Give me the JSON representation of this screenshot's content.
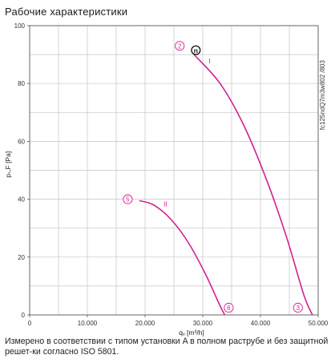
{
  "page": {
    "title": "Рабочие характеристики",
    "caption": "Измерено в соответствии с типом установки A в полном раструбе и без защитной решет-ки согласно ISO 5801."
  },
  "chart_data": {
    "type": "line",
    "xlabel": "qᵥ [m³/h]",
    "ylabel": "pₛ,F [Pa]",
    "xlim": [
      0,
      50000
    ],
    "ylim": [
      0,
      100
    ],
    "x_ticks": [
      0,
      10000,
      20000,
      30000,
      40000,
      50000
    ],
    "x_tick_labels": [
      "0",
      "10.000",
      "20.000",
      "30.000",
      "40.000",
      "50.000"
    ],
    "y_ticks": [
      0,
      20,
      40,
      60,
      80,
      100
    ],
    "y_tick_labels": [
      "0",
      "20",
      "40",
      "60",
      "80",
      "100"
    ],
    "grid": true,
    "side_note": "fc125ndQ7m3w802 /803",
    "series": [
      {
        "name": "I",
        "color": "#d4208f",
        "x": [
          28500,
          33000,
          37000,
          41000,
          44500,
          47500,
          49000
        ],
        "y": [
          90,
          80,
          66,
          47,
          27,
          7,
          0
        ],
        "label_at": [
          31000,
          87
        ],
        "start_marker": {
          "label": "2",
          "x": 26000,
          "y": 93
        },
        "end_marker": {
          "label": "3",
          "x": 46500,
          "y": 2.5
        }
      },
      {
        "name": "II",
        "color": "#d4208f",
        "x": [
          19000,
          21500,
          24500,
          27500,
          30500,
          32800,
          33800
        ],
        "y": [
          39.5,
          38,
          33,
          25,
          14,
          4,
          0
        ],
        "label_at": [
          23200,
          37.5
        ],
        "start_marker": {
          "label": "5",
          "x": 17000,
          "y": 40
        },
        "end_marker": {
          "label": "6",
          "x": 34500,
          "y": 2.5
        }
      }
    ],
    "operating_point": {
      "label": "n",
      "x": 28800,
      "y": 91.5
    }
  }
}
